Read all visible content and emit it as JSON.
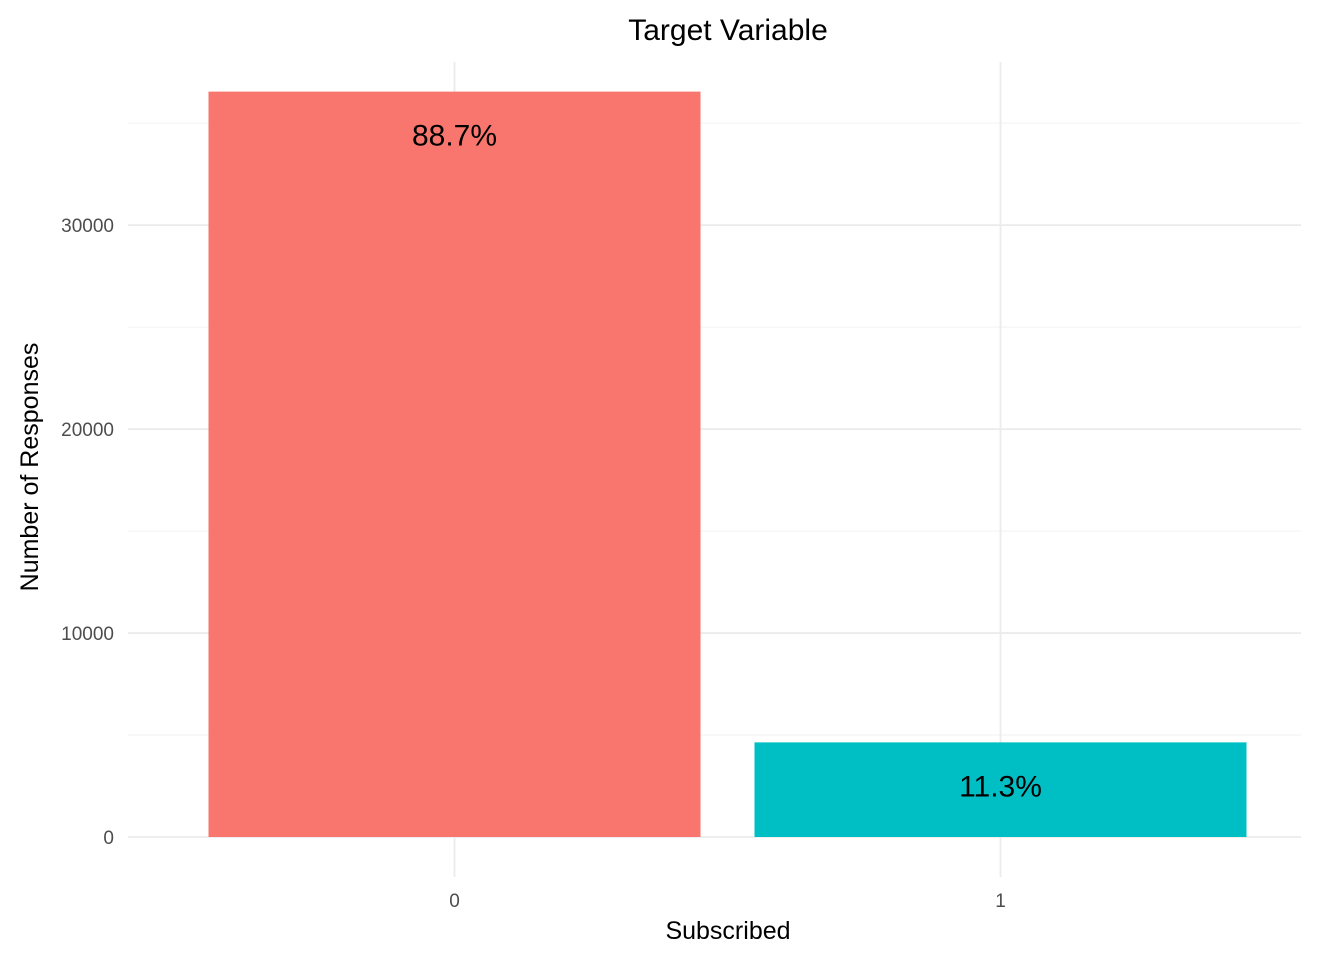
{
  "chart_data": {
    "type": "bar",
    "title": "Target Variable",
    "xlabel": "Subscribed",
    "ylabel": "Number of Responses",
    "categories": [
      "0",
      "1"
    ],
    "values": [
      36548,
      4640
    ],
    "data_labels": [
      "88.7%",
      "11.3%"
    ],
    "bar_colors": [
      "#F8766D",
      "#00BFC4"
    ],
    "ylim": [
      0,
      38000
    ],
    "y_ticks": [
      0,
      10000,
      20000,
      30000
    ],
    "y_tick_labels": [
      "0",
      "10000",
      "20000",
      "30000"
    ],
    "grid": true,
    "legend": "none"
  }
}
